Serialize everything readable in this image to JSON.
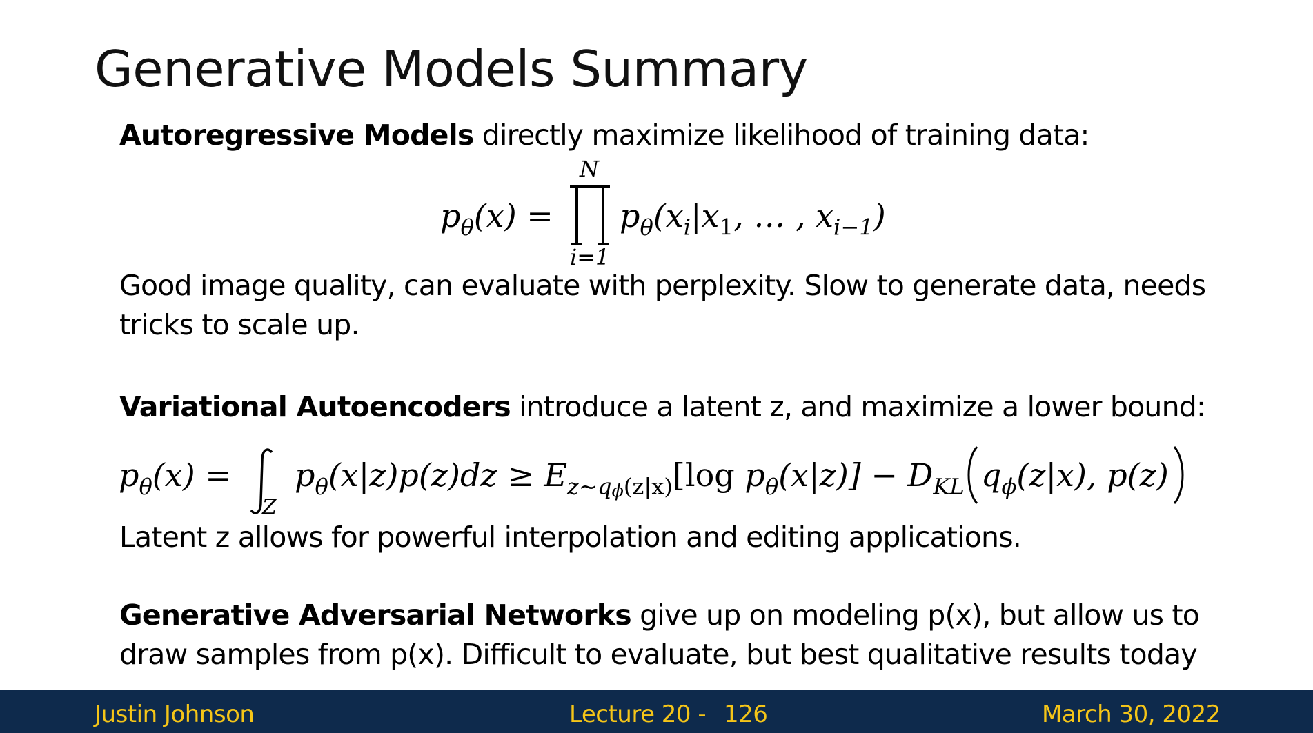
{
  "title": "Generative Models Summary",
  "ar": {
    "name": "Autoregressive Models",
    "intro": " directly maximize likelihood of training data:",
    "eq_lhs": "p",
    "eq_lhs_sub": "θ",
    "eq_lhs_arg": "(x) =",
    "prod_upper": "N",
    "prod_lower": "i=1",
    "eq_rhs_p": "p",
    "eq_rhs_sub": "θ",
    "eq_rhs_arg": "(x",
    "eq_rhs_i": "i",
    "eq_rhs_mid": "|x",
    "eq_rhs_one": "1",
    "eq_rhs_dots": ", … , x",
    "eq_rhs_im1": "i−1",
    "eq_rhs_close": ")",
    "note_line1": "Good image quality, can evaluate with perplexity. Slow to generate data, needs",
    "note_line2": "tricks to scale up."
  },
  "vae": {
    "name": "Variational Autoencoders",
    "intro": " introduce a latent z, and maximize a lower bound:",
    "eq_p1": "p",
    "eq_theta": "θ",
    "eq_part1": "(x) =",
    "eq_int_sub": "Z",
    "eq_part2": "(x|z)p(z)dz ≥ E",
    "eq_e_sub": "z~q",
    "eq_phi": "ϕ",
    "eq_e_sub2": "(z|x)",
    "eq_log": "[log",
    "eq_part3": "(x|z)] − D",
    "eq_kl": "KL",
    "eq_q": "q",
    "eq_part4": "(z|x), p(z)",
    "note": "Latent z allows for powerful interpolation and editing applications."
  },
  "gan": {
    "name": "Generative Adversarial Networks",
    "line1": " give up on modeling p(x), but allow us to",
    "line2": "draw samples from p(x). Difficult to evaluate, but best qualitative results today"
  },
  "footer": {
    "author": "Justin Johnson",
    "lecture": "Lecture 20 -",
    "page": "126",
    "date": "March 30, 2022"
  },
  "colors": {
    "footer_bg": "#0e2a4c",
    "footer_text": "#f5c518"
  }
}
